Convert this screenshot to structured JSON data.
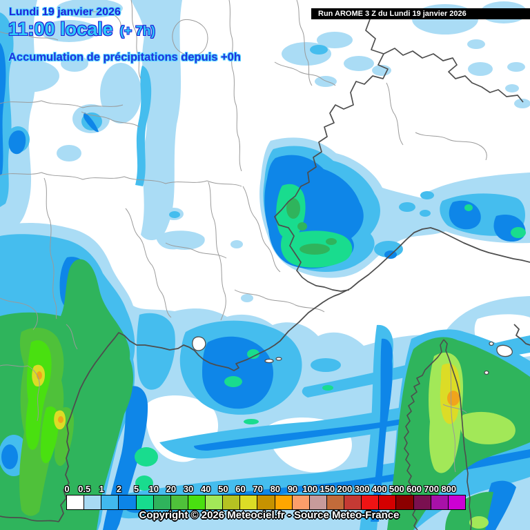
{
  "titles": {
    "date": "Lundi 19 janvier 2026",
    "time": "11:00 locale",
    "offset": "(+ 7h)",
    "subtitle": "Accumulation de précipitations depuis +0h"
  },
  "run_banner": {
    "text": "Run AROME 3 Z du Lundi 19 janvier 2026",
    "bg_color": "#000000",
    "text_color": "#ffffff"
  },
  "legend": {
    "unit_values": [
      "0",
      "0.5",
      "1",
      "2",
      "5",
      "10",
      "20",
      "30",
      "40",
      "50",
      "60",
      "70",
      "80",
      "90",
      "100",
      "150",
      "200",
      "300",
      "400",
      "500",
      "600",
      "700",
      "800"
    ],
    "colors": [
      "#ffffff",
      "#a8daf3",
      "#41b9ee",
      "#0c85e8",
      "#17dc8e",
      "#2fb35c",
      "#4fc13a",
      "#49e010",
      "#a2e858",
      "#b5c222",
      "#dcdc26",
      "#c79200",
      "#ffa600",
      "#fb9e6a",
      "#c79b9b",
      "#c26b3a",
      "#c53a34",
      "#f01414",
      "#d40000",
      "#8c0000",
      "#7a1050",
      "#a811a8",
      "#cc00d4"
    ]
  },
  "footer": {
    "copyright": "Copyright © 2026 Meteociel.fr - Source Meteo-France"
  }
}
